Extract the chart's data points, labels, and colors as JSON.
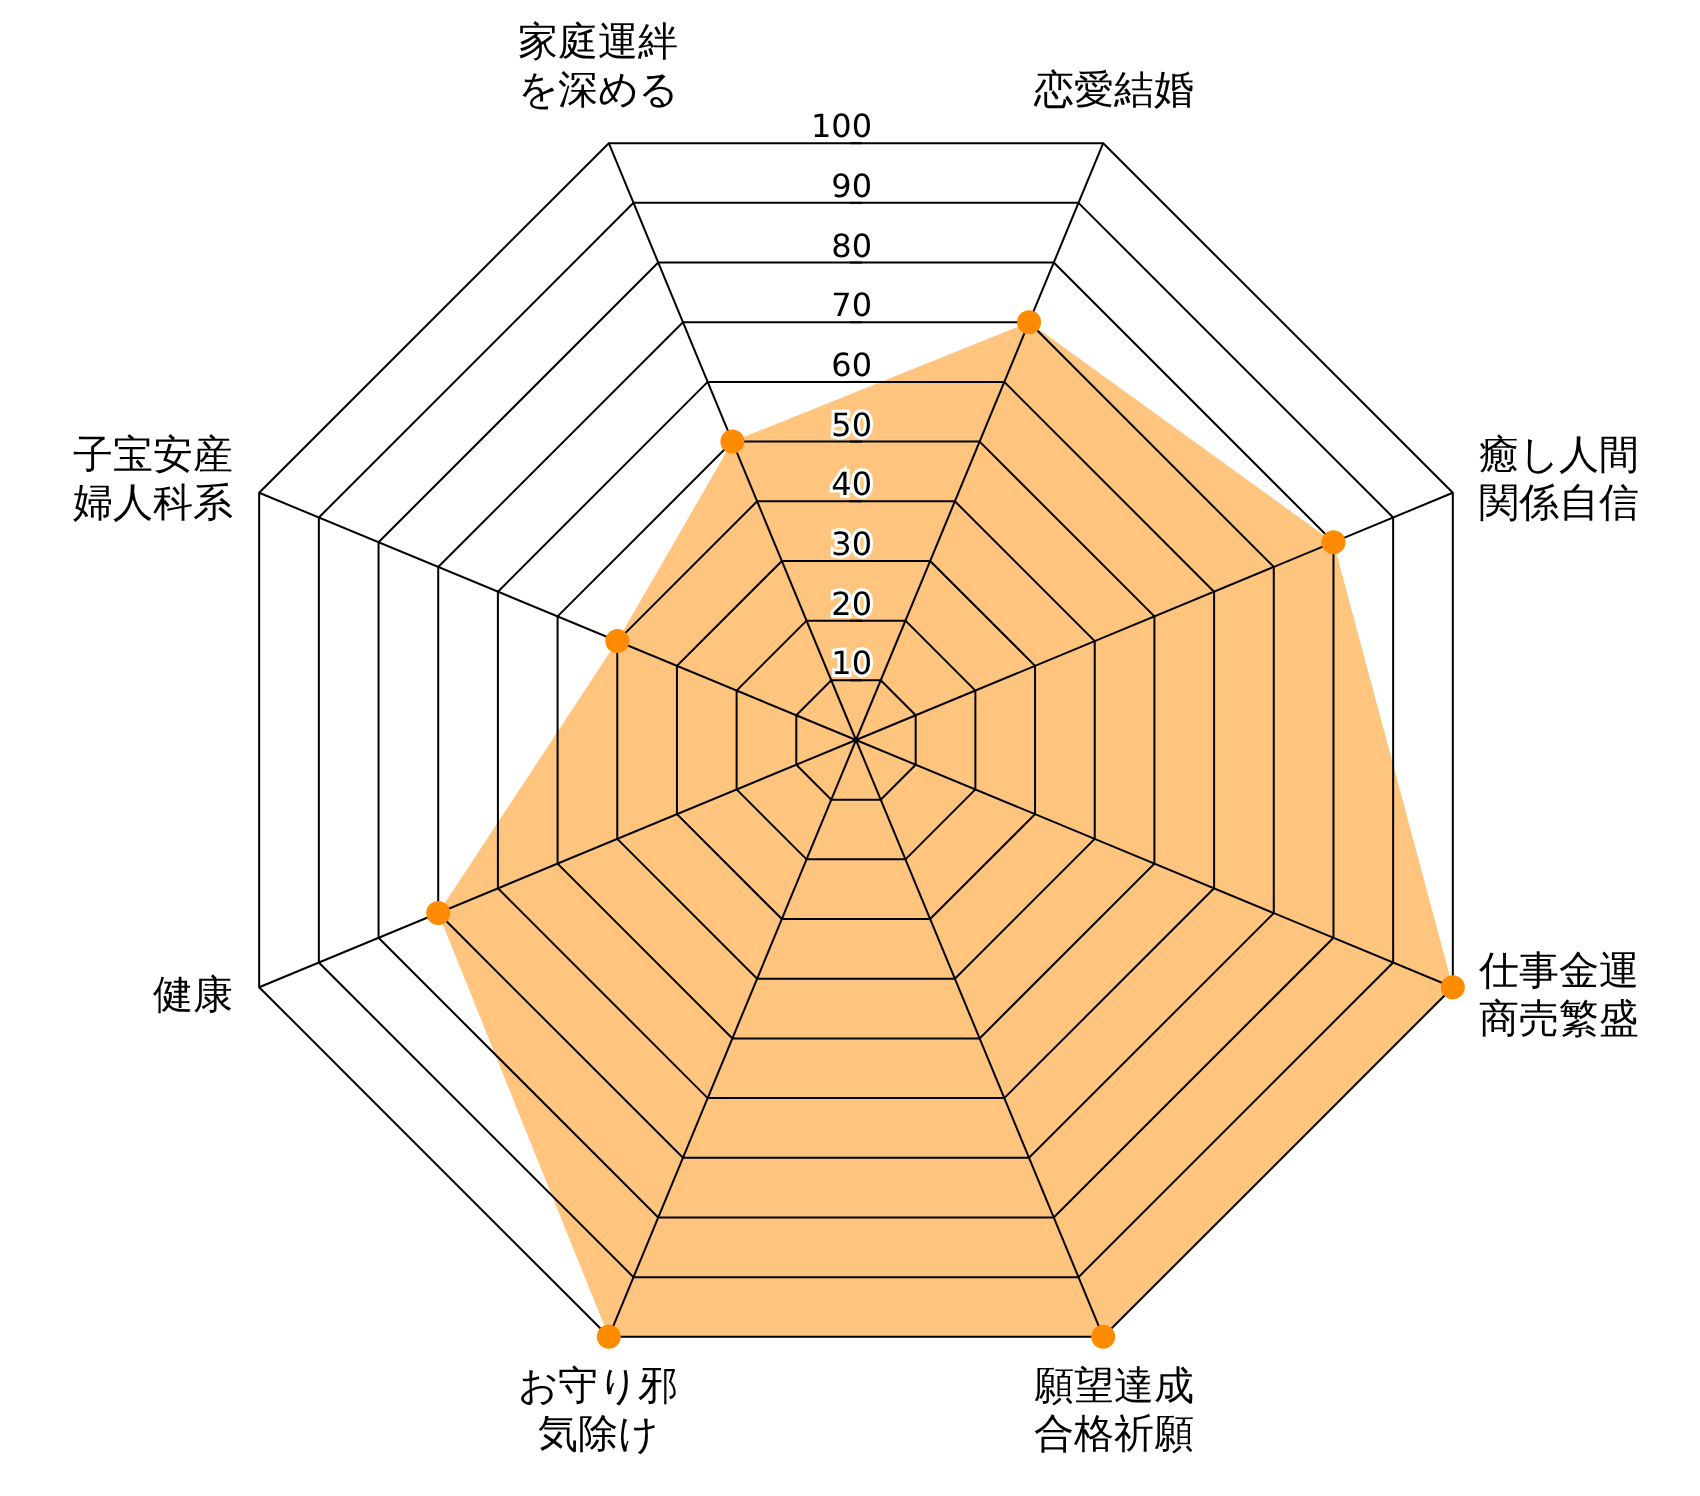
{
  "chart_data": {
    "type": "radar",
    "categories": [
      "恋愛結婚",
      "癒し人間関係自信",
      "仕事金運商売繁盛",
      "願望達成合格祈願",
      "お守り邪気除け",
      "健康",
      "子宝安産婦人科系",
      "家庭運絆を深める"
    ],
    "series": [
      {
        "color": "#ff8c00",
        "values": [
          70,
          80,
          100,
          100,
          100,
          70,
          40,
          50
        ]
      }
    ],
    "ylim": [
      0,
      100
    ],
    "yticks": [
      10,
      20,
      30,
      40,
      50,
      60,
      70,
      80,
      90,
      100
    ],
    "marker": "circle"
  }
}
